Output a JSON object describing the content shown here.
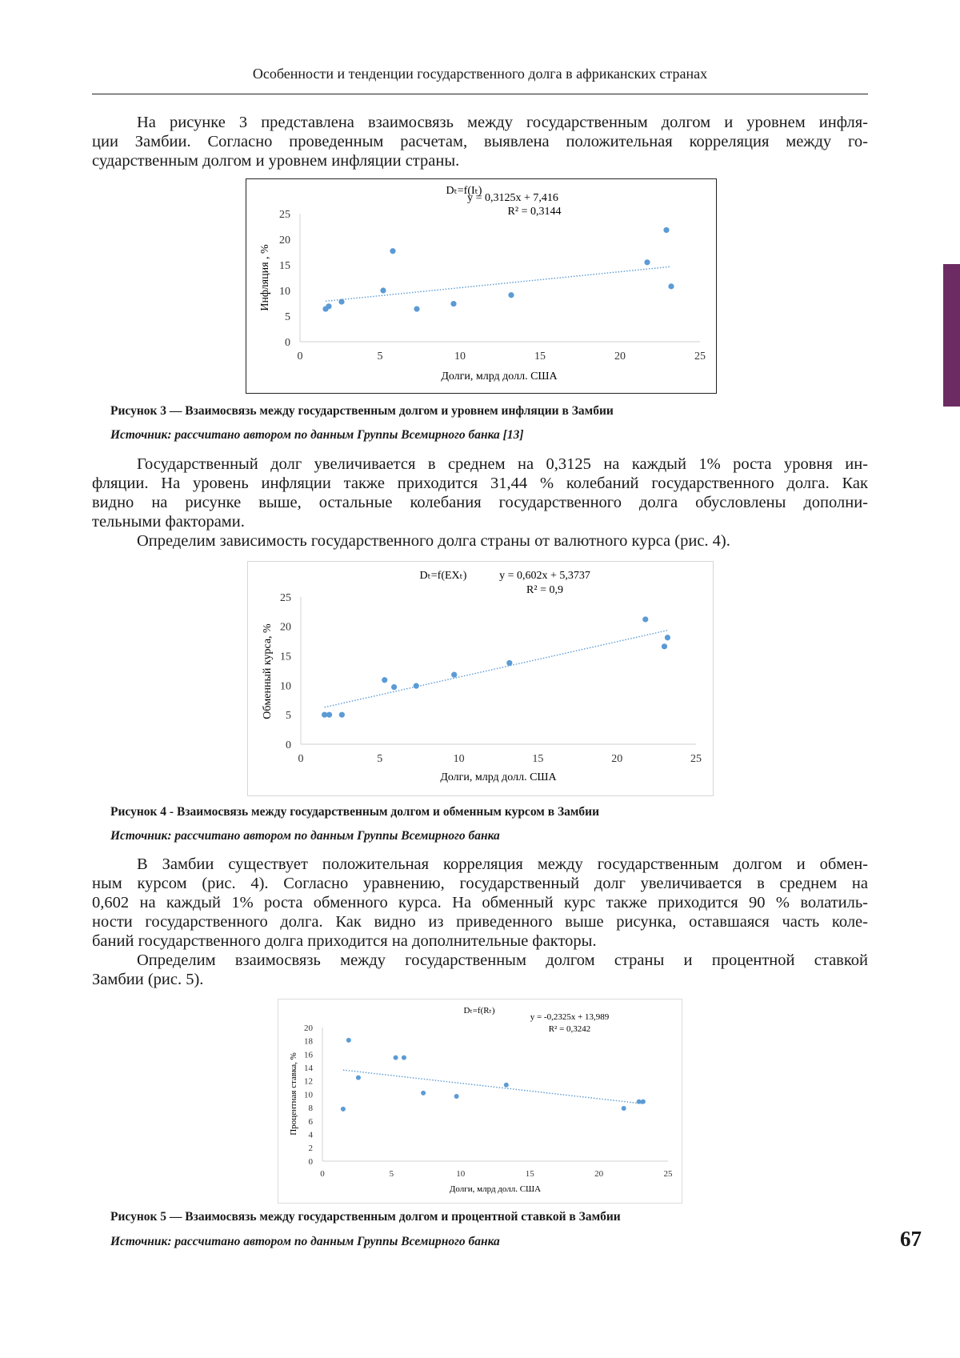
{
  "header": {
    "running_title": "Особенности и тенденции государственного долга в африканских странах"
  },
  "paragraphs": [
    {
      "lines": [
        "На рисунке 3 представлена взаимосвязь между государственным долгом и уровнем инфля-",
        "ции Замбии. Согласно проведенным расчетам, выявлена положительная корреляция между го-",
        "сударственным долгом и уровнем инфляции страны."
      ]
    },
    {
      "lines": [
        "Государственный долг увеличивается в среднем на 0,3125 на каждый 1% роста уровня ин-",
        "фляции. На уровень инфляции также приходится 31,44 % колебаний государственного долга. Как",
        "видно на рисунке выше, остальные колебания государственного долга обусловлены дополни-",
        "тельными факторами."
      ]
    },
    {
      "lines": [
        "Определим зависимость государственного долга страны от валютного курса (рис. 4)."
      ]
    },
    {
      "lines": [
        "В Замбии существует положительная корреляция между государственным долгом и обмен-",
        "ным курсом (рис. 4). Согласно уравнению, государственный долг увеличивается в среднем на",
        "0,602 на каждый 1% роста обменного курса. На обменный курс также приходится 90 % волатиль-",
        "ности государственного долга. Как видно из приведенного выше рисунка, оставшаяся часть коле-",
        "баний государственного долга приходится на дополнительные факторы."
      ]
    },
    {
      "lines": [
        "Определим взаимосвязь между государственным долгом страны и процентной ставкой",
        "Замбии (рис. 5)."
      ]
    }
  ],
  "figures": [
    {
      "caption": "Рисунок 3 — Взаимосвязь между государственным долгом и уровнем инфляции в Замбии",
      "source": "Источник: рассчитано автором по данным Группы Всемирного банка [13]"
    },
    {
      "caption": "Рисунок 4 - Взаимосвязь между государственным долгом и обменным курсом в Замбии",
      "source": "Источник: рассчитано автором по данным Группы Всемирного банка"
    },
    {
      "caption": "Рисунок 5 — Взаимосвязь между государственным долгом и процентной ставкой в Замбии",
      "source": "Источник: рассчитано автором по данным Группы Всемирного банка"
    }
  ],
  "page_number": "67",
  "colors": {
    "marker": "#5b9bd5",
    "trendline": "#5b9bd5",
    "side_tab": "#6d2b63"
  },
  "chart_data": [
    {
      "type": "scatter",
      "title": "Dₜ=f(Iₜ)",
      "equation": "y = 0,3125x + 7,416",
      "r2": "R² = 0,3144",
      "xlabel": "Долги,  млрд долл. США",
      "ylabel": "Инфляция , %",
      "xlim": [
        0,
        25
      ],
      "ylim": [
        0,
        25
      ],
      "xticks": [
        0,
        5,
        10,
        15,
        20,
        25
      ],
      "yticks": [
        0,
        5,
        10,
        15,
        20,
        25
      ],
      "trendline": {
        "type": "linear",
        "slope": 0.3125,
        "intercept": 7.416,
        "style": "dotted"
      },
      "grid": false,
      "x": [
        1.6,
        1.8,
        2.6,
        5.2,
        5.8,
        7.3,
        9.6,
        13.2,
        21.7,
        22.9,
        23.2
      ],
      "y": [
        6.4,
        6.9,
        7.8,
        10.0,
        17.7,
        6.4,
        7.4,
        9.1,
        15.5,
        21.8,
        10.8
      ]
    },
    {
      "type": "scatter",
      "title": "Dₜ=f(EXₜ)",
      "equation": "y = 0,602x + 5,3737",
      "r2": "R² = 0,9",
      "xlabel": "Долги, млрд долл. США",
      "ylabel": "Обменный курса, %",
      "xlim": [
        0,
        25
      ],
      "ylim": [
        0,
        25
      ],
      "xticks": [
        0,
        5,
        10,
        15,
        20,
        25
      ],
      "yticks": [
        0,
        5,
        10,
        15,
        20,
        25
      ],
      "trendline": {
        "type": "linear",
        "slope": 0.602,
        "intercept": 5.3737,
        "style": "dotted"
      },
      "grid": false,
      "x": [
        1.5,
        1.8,
        2.6,
        5.3,
        5.9,
        7.3,
        9.7,
        13.2,
        21.8,
        23.0,
        23.2
      ],
      "y": [
        5.0,
        5.0,
        5.0,
        10.9,
        9.7,
        9.9,
        11.8,
        13.8,
        21.2,
        16.6,
        18.1
      ]
    },
    {
      "type": "scatter",
      "title": "Dₜ=f(Rₜ)",
      "equation": "y = -0,2325x + 13,989",
      "r2": "R² = 0,3242",
      "xlabel": "Долги, млрд долл. США",
      "ylabel": "Процентная ставка, %",
      "xlim": [
        0,
        25
      ],
      "ylim": [
        0,
        20
      ],
      "xticks": [
        0,
        5,
        10,
        15,
        20,
        25
      ],
      "yticks": [
        0,
        2,
        4,
        6,
        8,
        10,
        12,
        14,
        16,
        18,
        20
      ],
      "trendline": {
        "type": "linear",
        "slope": -0.2325,
        "intercept": 13.989,
        "style": "dotted"
      },
      "grid": false,
      "x": [
        1.5,
        1.9,
        2.6,
        5.3,
        5.9,
        7.3,
        9.7,
        13.3,
        21.8,
        22.9,
        23.2
      ],
      "y": [
        7.8,
        18.1,
        12.5,
        15.5,
        15.5,
        10.2,
        9.7,
        11.4,
        7.9,
        8.9,
        8.9
      ]
    }
  ]
}
